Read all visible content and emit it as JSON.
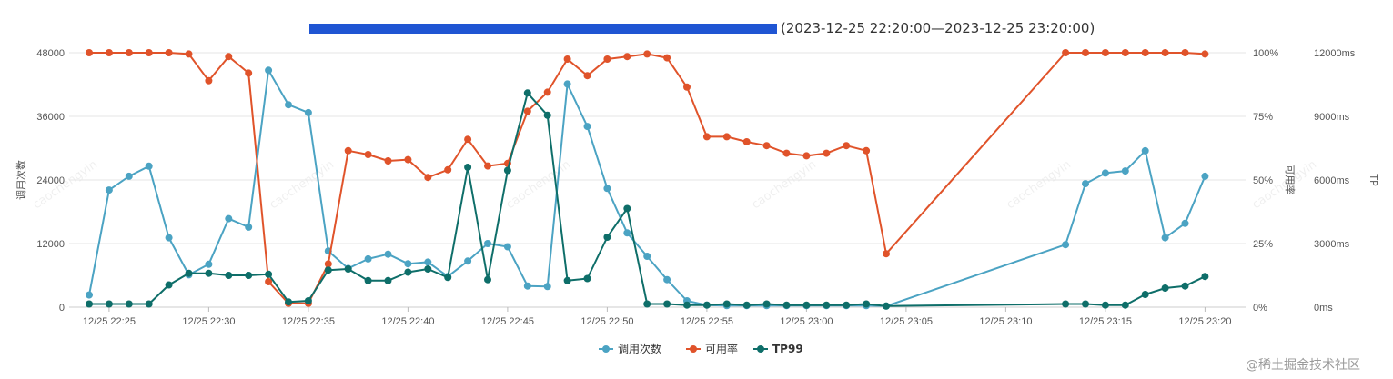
{
  "chart_data": {
    "type": "line",
    "title": "(2023-12-25 22:20:00—2023-12-25 23:20:00)",
    "xlabel": "",
    "y_left_label": "调用次数",
    "y_right1_label": "可用率",
    "y_right2_label": "TP",
    "y_left_ticks": [
      "0",
      "12000",
      "24000",
      "36000",
      "48000"
    ],
    "y_right1_ticks": [
      "0%",
      "25%",
      "50%",
      "75%",
      "100%"
    ],
    "y_right2_ticks": [
      "0ms",
      "3000ms",
      "6000ms",
      "9000ms",
      "12000ms"
    ],
    "x_ticks": [
      "12/25 22:25",
      "12/25 22:30",
      "12/25 22:35",
      "12/25 22:40",
      "12/25 22:45",
      "12/25 22:50",
      "12/25 22:55",
      "12/25 23:00",
      "12/25 23:05",
      "12/25 23:10",
      "12/25 23:15",
      "12/25 23:20"
    ],
    "x_unit": "minutes after 22:20",
    "ylim_left": [
      0,
      48000
    ],
    "ylim_right1": [
      0,
      100
    ],
    "ylim_right2": [
      0,
      12000
    ],
    "grid": true,
    "legend_position": "bottom-center",
    "series": [
      {
        "name": "调用次数",
        "axis": "left",
        "color": "#4ba3c3",
        "points": [
          [
            4,
            2300
          ],
          [
            5,
            22100
          ],
          [
            6,
            24700
          ],
          [
            7,
            26600
          ],
          [
            8,
            13100
          ],
          [
            9,
            6100
          ],
          [
            10,
            8100
          ],
          [
            11,
            16700
          ],
          [
            12,
            15100
          ],
          [
            13,
            44700
          ],
          [
            14,
            38200
          ],
          [
            15,
            36700
          ],
          [
            16,
            10600
          ],
          [
            17,
            7300
          ],
          [
            18,
            9100
          ],
          [
            19,
            10000
          ],
          [
            20,
            8200
          ],
          [
            21,
            8500
          ],
          [
            22,
            5800
          ],
          [
            23,
            8700
          ],
          [
            24,
            12000
          ],
          [
            25,
            11400
          ],
          [
            26,
            4000
          ],
          [
            27,
            3900
          ],
          [
            28,
            42100
          ],
          [
            29,
            34100
          ],
          [
            30,
            22400
          ],
          [
            31,
            14000
          ],
          [
            32,
            9600
          ],
          [
            33,
            5200
          ],
          [
            34,
            1200
          ],
          [
            35,
            400
          ],
          [
            36,
            300
          ],
          [
            37,
            300
          ],
          [
            38,
            300
          ],
          [
            39,
            300
          ],
          [
            40,
            300
          ],
          [
            41,
            300
          ],
          [
            42,
            300
          ],
          [
            43,
            300
          ],
          [
            44,
            200
          ],
          [
            53,
            11800
          ],
          [
            54,
            23300
          ],
          [
            55,
            25300
          ],
          [
            56,
            25700
          ],
          [
            57,
            29500
          ],
          [
            58,
            13100
          ],
          [
            59,
            15800
          ],
          [
            60,
            24700
          ]
        ]
      },
      {
        "name": "可用率",
        "axis": "right1",
        "color": "#e0532a",
        "points": [
          [
            4,
            100
          ],
          [
            5,
            100
          ],
          [
            6,
            100
          ],
          [
            7,
            100
          ],
          [
            8,
            100
          ],
          [
            9,
            99.5
          ],
          [
            10,
            89
          ],
          [
            11,
            98.5
          ],
          [
            12,
            92
          ],
          [
            13,
            10
          ],
          [
            14,
            1.5
          ],
          [
            15,
            1.5
          ],
          [
            16,
            17
          ],
          [
            17,
            61.5
          ],
          [
            18,
            60
          ],
          [
            19,
            57.5
          ],
          [
            20,
            58
          ],
          [
            21,
            51
          ],
          [
            22,
            54
          ],
          [
            23,
            66
          ],
          [
            24,
            55.5
          ],
          [
            25,
            56.5
          ],
          [
            26,
            77
          ],
          [
            27,
            84.5
          ],
          [
            28,
            97.5
          ],
          [
            29,
            91
          ],
          [
            30,
            97.5
          ],
          [
            31,
            98.5
          ],
          [
            32,
            99.5
          ],
          [
            33,
            98
          ],
          [
            34,
            86.5
          ],
          [
            35,
            67
          ],
          [
            36,
            67
          ],
          [
            37,
            65
          ],
          [
            38,
            63.5
          ],
          [
            39,
            60.5
          ],
          [
            40,
            59.5
          ],
          [
            41,
            60.5
          ],
          [
            42,
            63.5
          ],
          [
            43,
            61.5
          ],
          [
            44,
            21
          ],
          [
            53,
            100
          ],
          [
            54,
            100
          ],
          [
            55,
            100
          ],
          [
            56,
            100
          ],
          [
            57,
            100
          ],
          [
            58,
            100
          ],
          [
            59,
            100
          ],
          [
            60,
            99.5
          ]
        ]
      },
      {
        "name": "TP99",
        "axis": "right2",
        "color": "#0e6e69",
        "points": [
          [
            4,
            150
          ],
          [
            5,
            150
          ],
          [
            6,
            150
          ],
          [
            7,
            150
          ],
          [
            8,
            1050
          ],
          [
            9,
            1600
          ],
          [
            10,
            1600
          ],
          [
            11,
            1500
          ],
          [
            12,
            1500
          ],
          [
            13,
            1550
          ],
          [
            14,
            250
          ],
          [
            15,
            300
          ],
          [
            16,
            1750
          ],
          [
            17,
            1800
          ],
          [
            18,
            1250
          ],
          [
            19,
            1250
          ],
          [
            20,
            1650
          ],
          [
            21,
            1800
          ],
          [
            22,
            1400
          ],
          [
            23,
            6600
          ],
          [
            24,
            1300
          ],
          [
            25,
            6450
          ],
          [
            26,
            10100
          ],
          [
            27,
            9050
          ],
          [
            28,
            1250
          ],
          [
            29,
            1350
          ],
          [
            30,
            3300
          ],
          [
            31,
            4650
          ],
          [
            32,
            150
          ],
          [
            33,
            150
          ],
          [
            34,
            100
          ],
          [
            35,
            100
          ],
          [
            36,
            150
          ],
          [
            37,
            100
          ],
          [
            38,
            150
          ],
          [
            39,
            100
          ],
          [
            40,
            100
          ],
          [
            41,
            100
          ],
          [
            42,
            100
          ],
          [
            43,
            150
          ],
          [
            44,
            50
          ],
          [
            53,
            150
          ],
          [
            54,
            150
          ],
          [
            55,
            100
          ],
          [
            56,
            100
          ],
          [
            57,
            600
          ],
          [
            58,
            900
          ],
          [
            59,
            1000
          ],
          [
            60,
            1450
          ]
        ]
      }
    ]
  }
}
